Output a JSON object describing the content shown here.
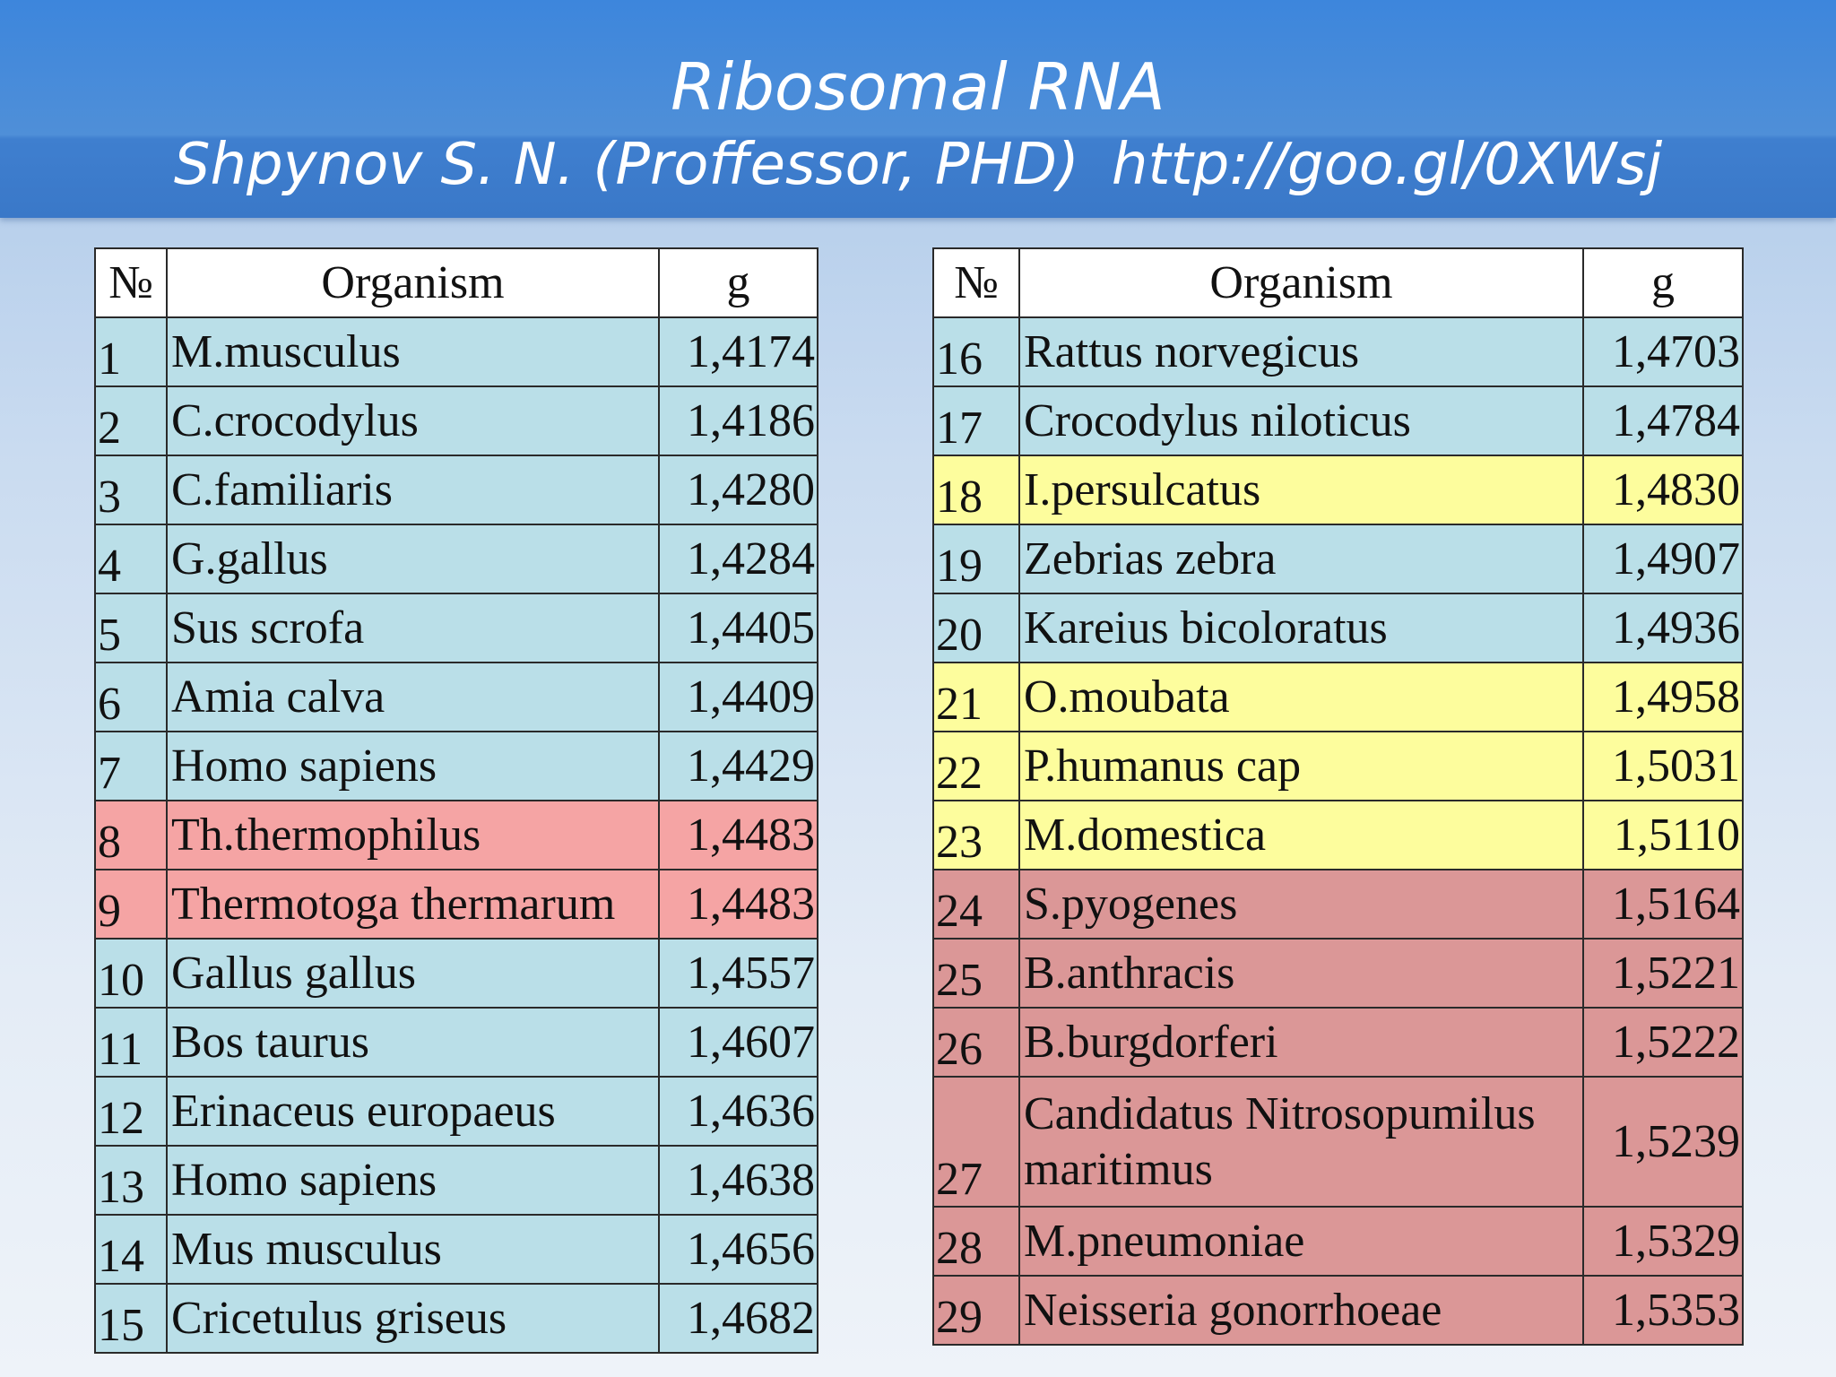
{
  "header": {
    "title": "Ribosomal RNA",
    "author": "Shpynov S. N. (Proffessor, PHD)",
    "link": "http://goo.gl/0XWsj"
  },
  "colors": {
    "blue": "#badfe8",
    "pink": "#f5a4a4",
    "yellow": "#fdfd9d",
    "rose": "#db9797"
  },
  "columns": {
    "num": "№",
    "organism": "Organism",
    "g": "g"
  },
  "left_table": [
    {
      "n": "1",
      "organism": "M.musculus",
      "g": "1,4174",
      "color": "blue"
    },
    {
      "n": "2",
      "organism": "C.crocodylus",
      "g": "1,4186",
      "color": "blue"
    },
    {
      "n": "3",
      "organism": "C.familiaris",
      "g": "1,4280",
      "color": "blue"
    },
    {
      "n": "4",
      "organism": "G.gallus",
      "g": "1,4284",
      "color": "blue"
    },
    {
      "n": "5",
      "organism": "Sus scrofa",
      "g": "1,4405",
      "color": "blue"
    },
    {
      "n": "6",
      "organism": "Amia calva",
      "g": "1,4409",
      "color": "blue"
    },
    {
      "n": "7",
      "organism": "Homo sapiens",
      "g": "1,4429",
      "color": "blue"
    },
    {
      "n": "8",
      "organism": "Th.thermophilus",
      "g": "1,4483",
      "color": "pink"
    },
    {
      "n": "9",
      "organism": "Thermotoga thermarum",
      "g": "1,4483",
      "color": "pink"
    },
    {
      "n": "10",
      "organism": "Gallus gallus",
      "g": "1,4557",
      "color": "blue"
    },
    {
      "n": "11",
      "organism": "Bos taurus",
      "g": "1,4607",
      "color": "blue"
    },
    {
      "n": "12",
      "organism": "Erinaceus europaeus",
      "g": "1,4636",
      "color": "blue"
    },
    {
      "n": "13",
      "organism": "Homo sapiens",
      "g": "1,4638",
      "color": "blue"
    },
    {
      "n": "14",
      "organism": "Mus musculus",
      "g": "1,4656",
      "color": "blue"
    },
    {
      "n": "15",
      "organism": "Cricetulus griseus",
      "g": "1,4682",
      "color": "blue"
    }
  ],
  "right_table": [
    {
      "n": "16",
      "organism": "Rattus norvegicus",
      "g": "1,4703",
      "color": "blue"
    },
    {
      "n": "17",
      "organism": "Crocodylus niloticus",
      "g": "1,4784",
      "color": "blue"
    },
    {
      "n": "18",
      "organism": "I.persulcatus",
      "g": "1,4830",
      "color": "yellow"
    },
    {
      "n": "19",
      "organism": "Zebrias zebra",
      "g": "1,4907",
      "color": "blue"
    },
    {
      "n": "20",
      "organism": "Kareius bicoloratus",
      "g": "1,4936",
      "color": "blue"
    },
    {
      "n": "21",
      "organism": "O.moubata",
      "g": "1,4958",
      "color": "yellow"
    },
    {
      "n": "22",
      "organism": "P.humanus cap",
      "g": "1,5031",
      "color": "yellow"
    },
    {
      "n": "23",
      "organism": "M.domestica",
      "g": "1,5110",
      "color": "yellow"
    },
    {
      "n": "24",
      "organism": "S.pyogenes",
      "g": "1,5164",
      "color": "rose"
    },
    {
      "n": "25",
      "organism": "B.anthracis",
      "g": "1,5221",
      "color": "rose"
    },
    {
      "n": "26",
      "organism": "B.burgdorferi",
      "g": "1,5222",
      "color": "rose"
    },
    {
      "n": "27",
      "organism": "Candidatus Nitrosopumilus maritimus",
      "g": "1,5239",
      "color": "rose",
      "tall": true
    },
    {
      "n": "28",
      "organism": "M.pneumoniae",
      "g": "1,5329",
      "color": "rose"
    },
    {
      "n": "29",
      "organism": "Neisseria gonorrhoeae",
      "g": "1,5353",
      "color": "rose"
    }
  ]
}
